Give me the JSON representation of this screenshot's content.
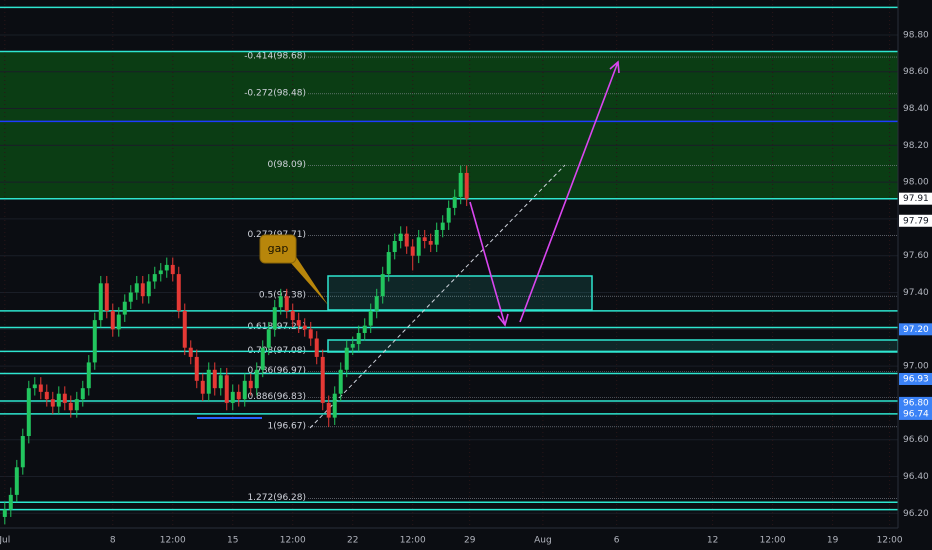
{
  "chart_data": {
    "type": "candlestick",
    "x": [
      0,
      1,
      2,
      3,
      4,
      5,
      6,
      7,
      8,
      9,
      10,
      11,
      12,
      13,
      14,
      15,
      16,
      17,
      18,
      19,
      20,
      21,
      22,
      23,
      24,
      25,
      26,
      27,
      28,
      29,
      30,
      31,
      32,
      33,
      34,
      35,
      36,
      37,
      38,
      39,
      40,
      41,
      42,
      43,
      44,
      45,
      46,
      47,
      48,
      49,
      50,
      51,
      52,
      53,
      54,
      55,
      56,
      57,
      58,
      59,
      60,
      61,
      62,
      63,
      64,
      65,
      66,
      67,
      68,
      69,
      70,
      71,
      72,
      73,
      74,
      75,
      76,
      77
    ],
    "open": [
      96.18,
      96.22,
      96.3,
      96.45,
      96.62,
      96.88,
      96.9,
      96.86,
      96.82,
      96.78,
      96.85,
      96.8,
      96.76,
      96.82,
      96.88,
      97.02,
      97.25,
      97.45,
      97.3,
      97.2,
      97.28,
      97.35,
      97.4,
      97.45,
      97.38,
      97.46,
      97.5,
      97.52,
      97.55,
      97.5,
      97.3,
      97.1,
      97.05,
      96.92,
      96.85,
      96.98,
      96.88,
      96.95,
      96.8,
      96.86,
      96.82,
      96.92,
      96.88,
      96.98,
      97.1,
      97.2,
      97.32,
      97.38,
      97.3,
      97.25,
      97.22,
      97.2,
      97.15,
      97.05,
      96.8,
      96.72,
      96.85,
      96.98,
      97.1,
      97.12,
      97.18,
      97.22,
      97.3,
      97.38,
      97.5,
      97.62,
      97.68,
      97.72,
      97.65,
      97.6,
      97.7,
      97.68,
      97.66,
      97.74,
      97.78,
      97.86,
      97.92,
      98.05
    ],
    "high": [
      96.26,
      96.34,
      96.49,
      96.66,
      96.92,
      96.94,
      96.94,
      96.9,
      96.86,
      96.89,
      96.89,
      96.84,
      96.86,
      96.92,
      97.06,
      97.29,
      97.49,
      97.49,
      97.34,
      97.32,
      97.39,
      97.44,
      97.49,
      97.49,
      97.5,
      97.54,
      97.56,
      97.59,
      97.59,
      97.54,
      97.34,
      97.14,
      97.09,
      96.96,
      97.02,
      97.02,
      96.99,
      96.99,
      96.9,
      96.9,
      96.96,
      96.96,
      97.02,
      97.14,
      97.24,
      97.36,
      97.42,
      97.42,
      97.34,
      97.29,
      97.26,
      97.24,
      97.19,
      97.09,
      96.84,
      96.89,
      97.02,
      97.14,
      97.16,
      97.22,
      97.26,
      97.34,
      97.42,
      97.54,
      97.66,
      97.72,
      97.76,
      97.76,
      97.69,
      97.74,
      97.74,
      97.72,
      97.78,
      97.82,
      97.9,
      97.96,
      98.09,
      98.09
    ],
    "low": [
      96.14,
      96.18,
      96.26,
      96.41,
      96.58,
      96.84,
      96.82,
      96.78,
      96.74,
      96.74,
      96.76,
      96.72,
      96.72,
      96.78,
      96.84,
      96.98,
      97.21,
      97.26,
      97.16,
      97.16,
      97.24,
      97.31,
      97.36,
      97.34,
      97.34,
      97.42,
      97.46,
      97.48,
      97.46,
      97.26,
      97.06,
      97.01,
      96.88,
      96.81,
      96.81,
      96.84,
      96.84,
      96.76,
      96.76,
      96.78,
      96.78,
      96.84,
      96.84,
      96.94,
      97.06,
      97.16,
      97.28,
      97.26,
      97.21,
      97.18,
      97.16,
      97.11,
      97.01,
      96.76,
      96.67,
      96.68,
      96.81,
      96.94,
      97.06,
      97.08,
      97.14,
      97.18,
      97.26,
      97.34,
      97.46,
      97.58,
      97.64,
      97.61,
      97.52,
      97.56,
      97.64,
      97.62,
      97.62,
      97.7,
      97.74,
      97.82,
      97.88,
      97.87
    ],
    "close": [
      96.22,
      96.3,
      96.45,
      96.62,
      96.88,
      96.9,
      96.86,
      96.82,
      96.78,
      96.85,
      96.8,
      96.76,
      96.82,
      96.88,
      97.02,
      97.25,
      97.45,
      97.3,
      97.2,
      97.28,
      97.35,
      97.4,
      97.45,
      97.38,
      97.46,
      97.5,
      97.52,
      97.55,
      97.5,
      97.3,
      97.1,
      97.05,
      96.92,
      96.85,
      96.98,
      96.88,
      96.95,
      96.8,
      96.86,
      96.82,
      96.92,
      96.88,
      96.98,
      97.1,
      97.2,
      97.32,
      97.38,
      97.3,
      97.25,
      97.22,
      97.2,
      97.15,
      97.05,
      96.8,
      96.72,
      96.85,
      96.98,
      97.1,
      97.12,
      97.18,
      97.22,
      97.3,
      97.38,
      97.5,
      97.62,
      97.68,
      97.72,
      97.65,
      97.6,
      97.7,
      97.68,
      97.66,
      97.74,
      97.78,
      97.86,
      97.92,
      98.05,
      97.91
    ],
    "up_color": "#22c55e",
    "down_color": "#e53935",
    "xlim": [
      -0.8,
      148.9
    ],
    "xticks": [
      {
        "value": 0,
        "label": "Jul"
      },
      {
        "value": 18,
        "label": "8"
      },
      {
        "value": 28,
        "label": "12:00"
      },
      {
        "value": 38,
        "label": "15"
      },
      {
        "value": 48,
        "label": "12:00"
      },
      {
        "value": 58,
        "label": "22"
      },
      {
        "value": 68,
        "label": "12:00"
      },
      {
        "value": 77.5,
        "label": "29"
      },
      {
        "value": 89.7,
        "label": "Aug"
      },
      {
        "value": 102,
        "label": "6"
      },
      {
        "value": 118,
        "label": "12"
      },
      {
        "value": 128,
        "label": "12:00"
      },
      {
        "value": 138,
        "label": "19"
      },
      {
        "value": 147.5,
        "label": "12:00"
      }
    ],
    "ylim": [
      96.12,
      98.99
    ],
    "yticks": [
      {
        "value": 96.2,
        "label": "96.20"
      },
      {
        "value": 96.4,
        "label": "96.40"
      },
      {
        "value": 96.6,
        "label": "96.60"
      },
      {
        "value": 96.8,
        "label": "96.80"
      },
      {
        "value": 97.0,
        "label": "97.00"
      },
      {
        "value": 97.2,
        "label": "97.20"
      },
      {
        "value": 97.4,
        "label": "97.40"
      },
      {
        "value": 97.6,
        "label": "97.60"
      },
      {
        "value": 97.8,
        "label": "97.80"
      },
      {
        "value": 98.0,
        "label": "98.00"
      },
      {
        "value": 98.2,
        "label": "98.20"
      },
      {
        "value": 98.4,
        "label": "98.40"
      },
      {
        "value": 98.6,
        "label": "98.60"
      },
      {
        "value": 98.8,
        "label": "98.80"
      }
    ],
    "fib_levels": [
      {
        "value": 98.68,
        "label": "-0.414(98.68)"
      },
      {
        "value": 98.48,
        "label": "-0.272(98.48)"
      },
      {
        "value": 98.09,
        "label": "0(98.09)"
      },
      {
        "value": 97.71,
        "label": "0.272(97.71)"
      },
      {
        "value": 97.38,
        "label": "0.5(97.38)"
      },
      {
        "value": 97.21,
        "label": "0.618(97.21)"
      },
      {
        "value": 97.08,
        "label": "0.708(97.08)"
      },
      {
        "value": 96.97,
        "label": "0.786(96.97)"
      },
      {
        "value": 96.83,
        "label": "0.886(96.83)"
      },
      {
        "value": 96.67,
        "label": "1(96.67)"
      },
      {
        "value": 96.28,
        "label": "1.272(96.28)"
      }
    ],
    "zone": [
      97.91,
      98.71
    ],
    "zone_color": "#0b3d14",
    "hlines": [
      98.95,
      98.71,
      97.91,
      97.3,
      97.21,
      97.08,
      96.96,
      96.81,
      96.74,
      96.26,
      96.22
    ],
    "hline_color": "#2ee6d0",
    "blue_line": 98.33,
    "price_tags": [
      {
        "value": 97.91,
        "label": "97.91",
        "color": "#ffffff"
      },
      {
        "value": 97.79,
        "label": "97.79",
        "color": "#ffffff"
      },
      {
        "value": 97.2,
        "label": "97.20",
        "color": "#3b82f6"
      },
      {
        "value": 96.93,
        "label": "96.93",
        "color": "#3b82f6"
      },
      {
        "value": 96.8,
        "label": "96.80",
        "color": "#3b82f6"
      },
      {
        "value": 96.74,
        "label": "96.74",
        "color": "#3b82f6"
      }
    ],
    "annotation": "gap"
  }
}
